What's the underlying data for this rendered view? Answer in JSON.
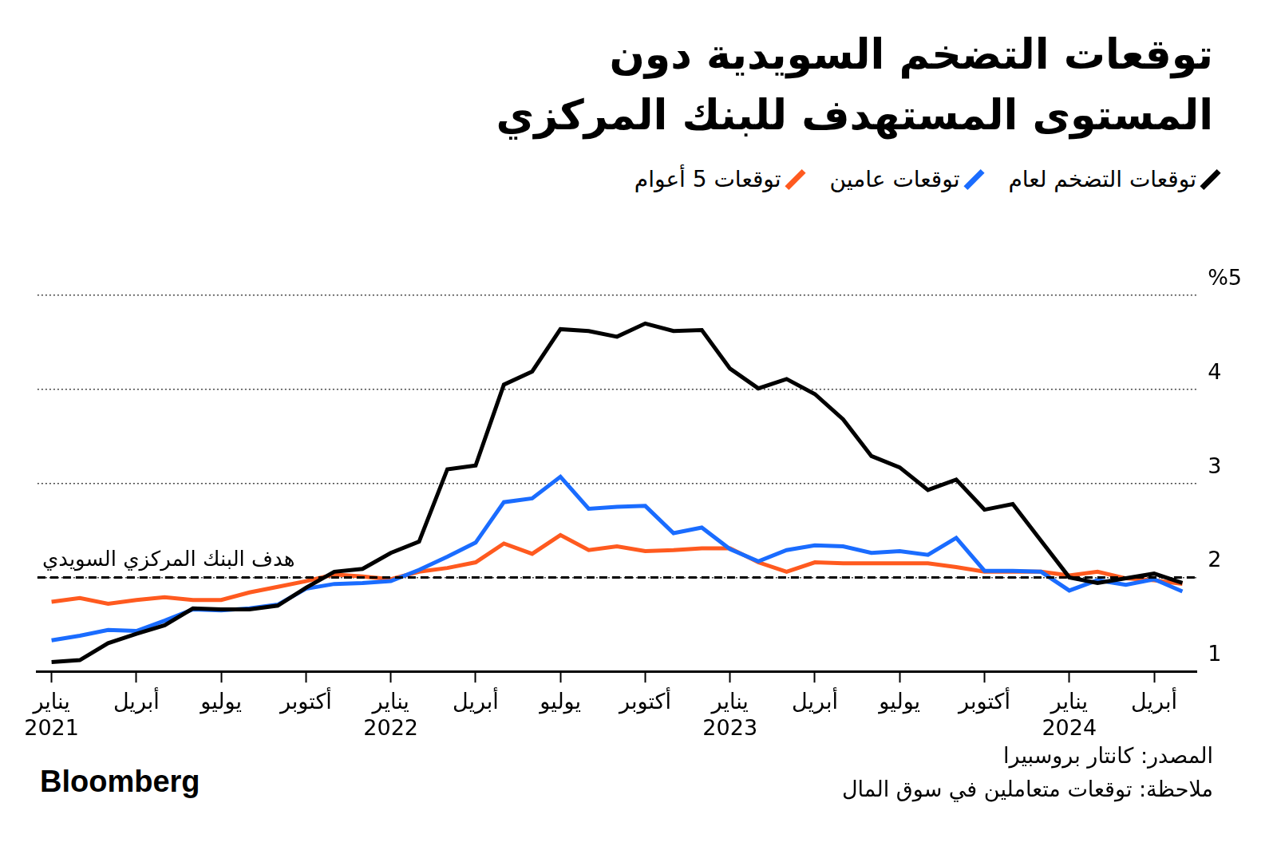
{
  "chart_data": {
    "type": "line",
    "title": [
      "توقعات التضخم السويدية دون",
      "المستوى المستهدف للبنك المركزي"
    ],
    "legend": "top-right",
    "grid": true,
    "categories": [
      "يناير 2021",
      null,
      null,
      "أبريل",
      null,
      null,
      "يوليو",
      null,
      null,
      "أكتوبر",
      null,
      null,
      "يناير 2022",
      null,
      null,
      "أبريل",
      null,
      null,
      "يوليو",
      null,
      null,
      "أكتوبر",
      null,
      null,
      "يناير 2023",
      null,
      null,
      "أبريل",
      null,
      null,
      "يوليو",
      null,
      null,
      "أكتوبر",
      null,
      null,
      "يناير 2024",
      null,
      null,
      "أبريل",
      null
    ],
    "series": [
      {
        "name": "توقعات التضخم لعام",
        "color": "#000000",
        "values": [
          1.1,
          1.12,
          1.3,
          1.4,
          1.49,
          1.67,
          1.66,
          1.66,
          1.7,
          1.89,
          2.06,
          2.09,
          2.26,
          2.38,
          3.15,
          3.19,
          4.05,
          4.19,
          4.64,
          4.62,
          4.56,
          4.7,
          4.62,
          4.63,
          4.22,
          4.01,
          4.11,
          3.95,
          3.68,
          3.29,
          3.17,
          2.93,
          3.04,
          2.72,
          2.78,
          2.39,
          2.0,
          1.94,
          1.99,
          2.04,
          1.94
        ]
      },
      {
        "name": "توقعات عامين",
        "color": "#1a6cff",
        "values": [
          1.33,
          1.38,
          1.44,
          1.43,
          1.54,
          1.66,
          1.65,
          1.67,
          1.71,
          1.88,
          1.93,
          1.94,
          1.96,
          2.08,
          2.22,
          2.37,
          2.8,
          2.84,
          3.07,
          2.73,
          2.75,
          2.76,
          2.47,
          2.53,
          2.3,
          2.17,
          2.29,
          2.34,
          2.33,
          2.26,
          2.28,
          2.24,
          2.42,
          2.07,
          2.07,
          2.06,
          1.86,
          1.97,
          1.92,
          1.98,
          1.85
        ]
      },
      {
        "name": "توقعات 5 أعوام",
        "color": "#ff5a1f",
        "values": [
          1.74,
          1.78,
          1.72,
          1.76,
          1.79,
          1.76,
          1.76,
          1.84,
          1.9,
          1.96,
          2.03,
          2.01,
          1.98,
          2.06,
          2.1,
          2.16,
          2.36,
          2.25,
          2.45,
          2.29,
          2.33,
          2.28,
          2.29,
          2.31,
          2.31,
          2.16,
          2.06,
          2.16,
          2.15,
          2.15,
          2.15,
          2.15,
          2.11,
          2.06,
          2.06,
          2.06,
          2.02,
          2.06,
          1.99,
          1.97,
          1.93
        ]
      }
    ],
    "ylim": [
      1,
      5
    ],
    "yticks": [
      1,
      2,
      3,
      4,
      {
        "value": 5,
        "label": "%5"
      }
    ],
    "target": {
      "value": 2,
      "label": "هدف البنك المركزي السويدي",
      "color": "#000000",
      "line_style": "dashed"
    },
    "source": "المصدر: كانتار بروسبيرا",
    "note": "ملاحظة: توقعات متعاملين في سوق المال",
    "brand": "Bloomberg"
  }
}
